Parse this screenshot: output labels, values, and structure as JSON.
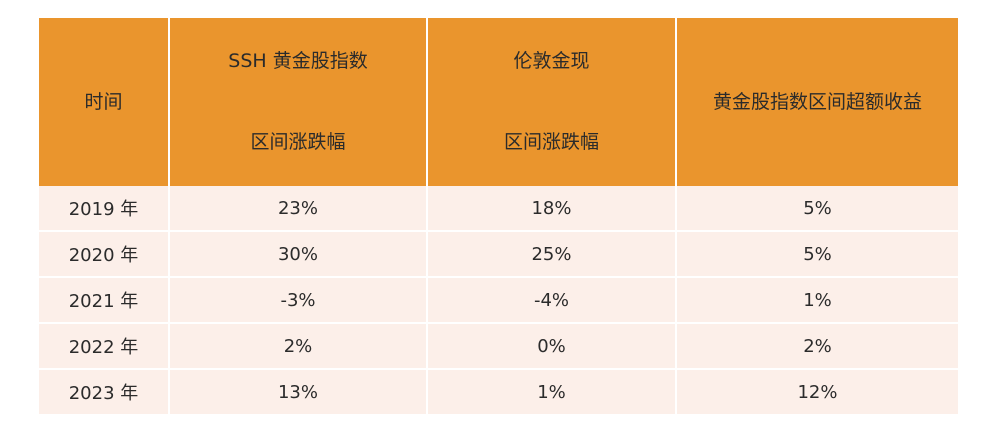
{
  "table": {
    "header_bg": "#ea952d",
    "row_bg": "#fcefe9",
    "headers": [
      {
        "line1": "时间",
        "line2": ""
      },
      {
        "line1": "SSH 黄金股指数",
        "line2": "区间涨跌幅"
      },
      {
        "line1": "伦敦金现",
        "line2": "区间涨跌幅"
      },
      {
        "line1": "黄金股指数区间超额收益",
        "line2": ""
      }
    ],
    "rows": [
      [
        "2019 年",
        "23%",
        "18%",
        "5%"
      ],
      [
        "2020 年",
        "30%",
        "25%",
        "5%"
      ],
      [
        "2021 年",
        "-3%",
        "-4%",
        "1%"
      ],
      [
        "2022 年",
        "2%",
        "0%",
        "2%"
      ],
      [
        "2023 年",
        "13%",
        "1%",
        "12%"
      ]
    ]
  }
}
